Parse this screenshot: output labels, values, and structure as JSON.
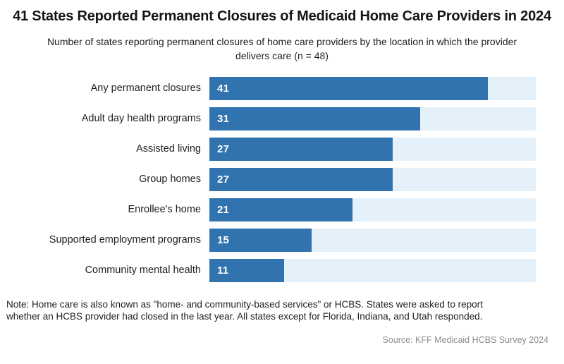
{
  "chart_data": {
    "type": "bar",
    "orientation": "horizontal",
    "title": "41 States Reported Permanent Closures of Medicaid Home Care Providers in 2024",
    "subtitle": "Number of states reporting permanent closures of home care providers by the location in which the provider delivers care (n = 48)",
    "categories": [
      "Any permanent closures",
      "Adult day health programs",
      "Assisted living",
      "Group homes",
      "Enrollee's home",
      "Supported employment programs",
      "Community mental health"
    ],
    "values": [
      41,
      31,
      27,
      27,
      21,
      15,
      11
    ],
    "xlabel": "",
    "ylabel": "",
    "xlim": [
      0,
      48
    ],
    "grid": false,
    "legend": "none",
    "value_labels_inside_bars": true,
    "bar_color": "#3173ae",
    "track_color": "#e4f1fb",
    "note": "Note: Home care is also known as \"home- and community-based services\" or HCBS. States were asked to report whether an HCBS provider had closed in the last year. All states except for Florida, Indiana, and Utah responded.",
    "source": "Source: KFF Medicaid HCBS Survey 2024"
  }
}
